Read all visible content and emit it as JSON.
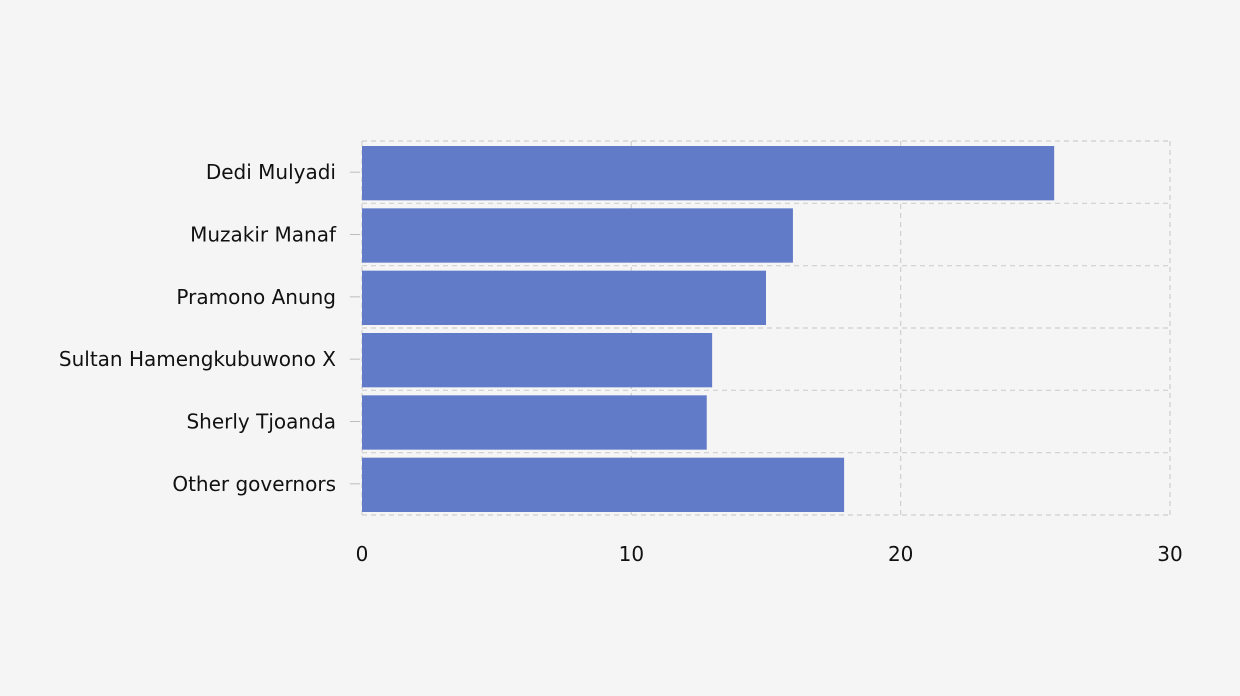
{
  "chart_data": {
    "type": "bar",
    "orientation": "horizontal",
    "title": "",
    "xlabel": "",
    "ylabel": "",
    "categories": [
      "Dedi Mulyadi",
      "Muzakir Manaf",
      "Pramono Anung",
      "Sultan Hamengkubuwono X",
      "Sherly Tjoanda",
      "Other governors"
    ],
    "values": [
      25.7,
      16,
      15,
      13,
      12.8,
      17.9
    ],
    "xlim": [
      0,
      30
    ],
    "xticks": [
      "0",
      "10",
      "20",
      "30"
    ],
    "grid": true,
    "colors": {
      "bar": "#627bc9",
      "grid": "#cfcfcf",
      "background": "#f5f5f5"
    }
  }
}
